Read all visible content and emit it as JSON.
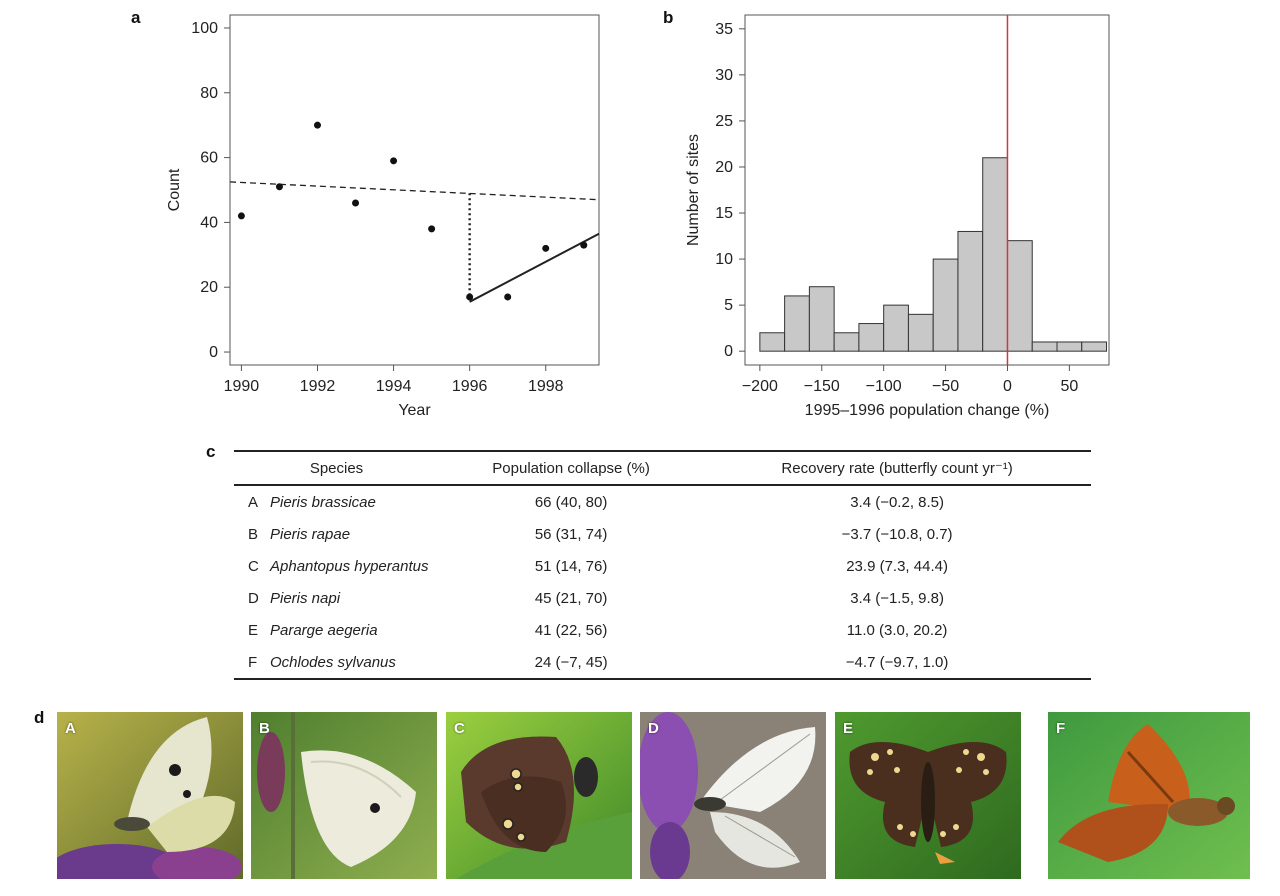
{
  "panel_labels": {
    "a": "a",
    "b": "b",
    "c": "c",
    "d": "d"
  },
  "chart_data": [
    {
      "id": "a",
      "type": "scatter",
      "xlabel": "Year",
      "ylabel": "Count",
      "xlim": [
        1989.7,
        1999.4
      ],
      "ylim": [
        -4,
        104
      ],
      "xticks": [
        1990,
        1992,
        1994,
        1996,
        1998
      ],
      "yticks": [
        0,
        20,
        40,
        60,
        80,
        100
      ],
      "points": [
        {
          "x": 1990,
          "y": 42
        },
        {
          "x": 1991,
          "y": 51
        },
        {
          "x": 1992,
          "y": 70
        },
        {
          "x": 1993,
          "y": 46
        },
        {
          "x": 1994,
          "y": 59
        },
        {
          "x": 1995,
          "y": 38
        },
        {
          "x": 1996,
          "y": 17
        },
        {
          "x": 1997,
          "y": 17
        },
        {
          "x": 1998,
          "y": 32
        },
        {
          "x": 1999,
          "y": 33
        }
      ],
      "trend_line": {
        "style": "dashed",
        "x": [
          1989.7,
          1999.4
        ],
        "y": [
          52.5,
          47
        ]
      },
      "drop_line": {
        "style": "dotted",
        "x": [
          1996,
          1996
        ],
        "y": [
          49,
          15.5
        ]
      },
      "recovery_line": {
        "style": "solid",
        "x": [
          1996,
          1999.4
        ],
        "y": [
          15.5,
          36.5
        ]
      }
    },
    {
      "id": "b",
      "type": "bar",
      "subtype": "histogram",
      "xlabel": "1995–1996 population change (%)",
      "ylabel": "Number of sites",
      "xlim": [
        -212,
        82
      ],
      "ylim": [
        -1.5,
        36.5
      ],
      "xticks": [
        -200,
        -150,
        -100,
        -50,
        0,
        50
      ],
      "xtick_labels": [
        "−200",
        "−150",
        "−100",
        "−50",
        "0",
        "50"
      ],
      "yticks": [
        0,
        5,
        10,
        15,
        20,
        25,
        30,
        35
      ],
      "bin_edges": [
        -200,
        -180,
        -160,
        -140,
        -120,
        -100,
        -80,
        -60,
        -40,
        -20,
        0,
        20,
        40,
        60,
        80
      ],
      "counts": [
        2,
        6,
        7,
        2,
        3,
        5,
        4,
        10,
        13,
        21,
        12,
        1,
        1,
        1
      ],
      "reference_line": {
        "x": 0,
        "color": "#d9333a"
      },
      "bar_color": "#c8c8c8"
    }
  ],
  "table": {
    "headers": [
      "Species",
      "Population collapse (%)",
      "Recovery rate (butterfly count yr⁻¹)"
    ],
    "rows": [
      {
        "letter": "A",
        "species": "Pieris brassicae",
        "collapse": "66 (40, 80)",
        "recovery": "3.4 (−0.2, 8.5)"
      },
      {
        "letter": "B",
        "species": "Pieris rapae",
        "collapse": "56 (31, 74)",
        "recovery": "−3.7 (−10.8, 0.7)"
      },
      {
        "letter": "C",
        "species": "Aphantopus hyperantus",
        "collapse": "51 (14, 76)",
        "recovery": "23.9 (7.3, 44.4)"
      },
      {
        "letter": "D",
        "species": "Pieris napi",
        "collapse": "45 (21, 70)",
        "recovery": "3.4 (−1.5, 9.8)"
      },
      {
        "letter": "E",
        "species": "Pararge aegeria",
        "collapse": "41 (22, 56)",
        "recovery": "11.0 (3.0, 20.2)"
      },
      {
        "letter": "F",
        "species": "Ochlodes sylvanus",
        "collapse": "24 (−7, 45)",
        "recovery": "−4.7 (−9.7, 1.0)"
      }
    ]
  },
  "photos": [
    {
      "label": "A"
    },
    {
      "label": "B"
    },
    {
      "label": "C"
    },
    {
      "label": "D"
    },
    {
      "label": "E"
    },
    {
      "label": "F"
    }
  ]
}
